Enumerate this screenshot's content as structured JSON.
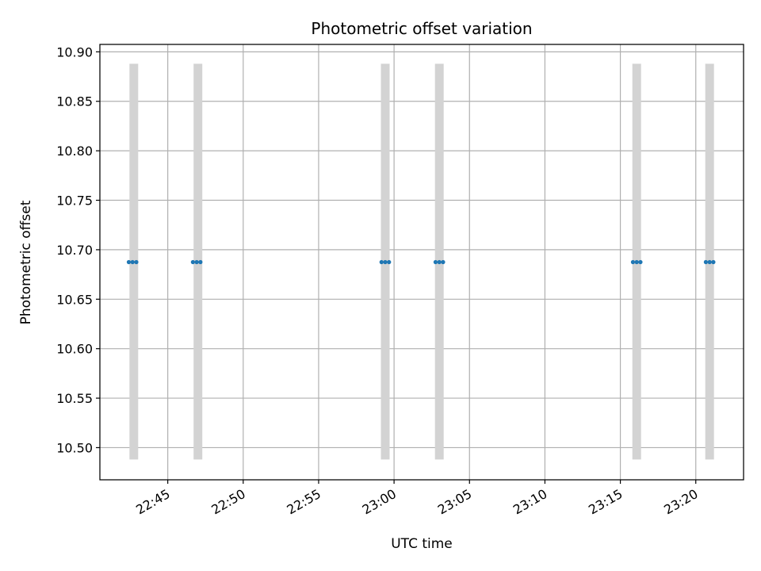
{
  "chart_data": {
    "type": "scatter",
    "title": "Photometric offset variation",
    "xlabel": "UTC time",
    "ylabel": "Photometric offset",
    "grid": true,
    "x_ticks": [
      "22:45",
      "22:50",
      "22:55",
      "23:00",
      "23:05",
      "23:10",
      "23:15",
      "23:20"
    ],
    "y_ticks": [
      "10.50",
      "10.55",
      "10.60",
      "10.65",
      "10.70",
      "10.75",
      "10.80",
      "10.85",
      "10.90"
    ],
    "xlim": [
      "22:40:30",
      "23:23:10"
    ],
    "ylim": [
      10.4675,
      10.9075
    ],
    "error_bars": {
      "color": "#d3d3d3",
      "low": 10.488,
      "high": 10.888,
      "times": [
        "22:42:45",
        "22:47:00",
        "22:59:25",
        "23:03:00",
        "23:16:05",
        "23:20:55"
      ]
    },
    "series": [
      {
        "color": "#1f77b4",
        "x": [
          "22:42:25",
          "22:42:40",
          "22:42:55",
          "22:46:40",
          "22:46:55",
          "22:47:10",
          "22:59:10",
          "22:59:25",
          "22:59:40",
          "23:02:45",
          "23:03:00",
          "23:03:15",
          "23:15:50",
          "23:16:05",
          "23:16:20",
          "23:20:40",
          "23:20:55",
          "23:21:10"
        ],
        "y": [
          10.6875,
          10.6875,
          10.6875,
          10.6875,
          10.6875,
          10.6875,
          10.6875,
          10.6875,
          10.6875,
          10.6875,
          10.6875,
          10.6875,
          10.6875,
          10.6875,
          10.6875,
          10.6875,
          10.6875,
          10.6875
        ]
      }
    ]
  }
}
